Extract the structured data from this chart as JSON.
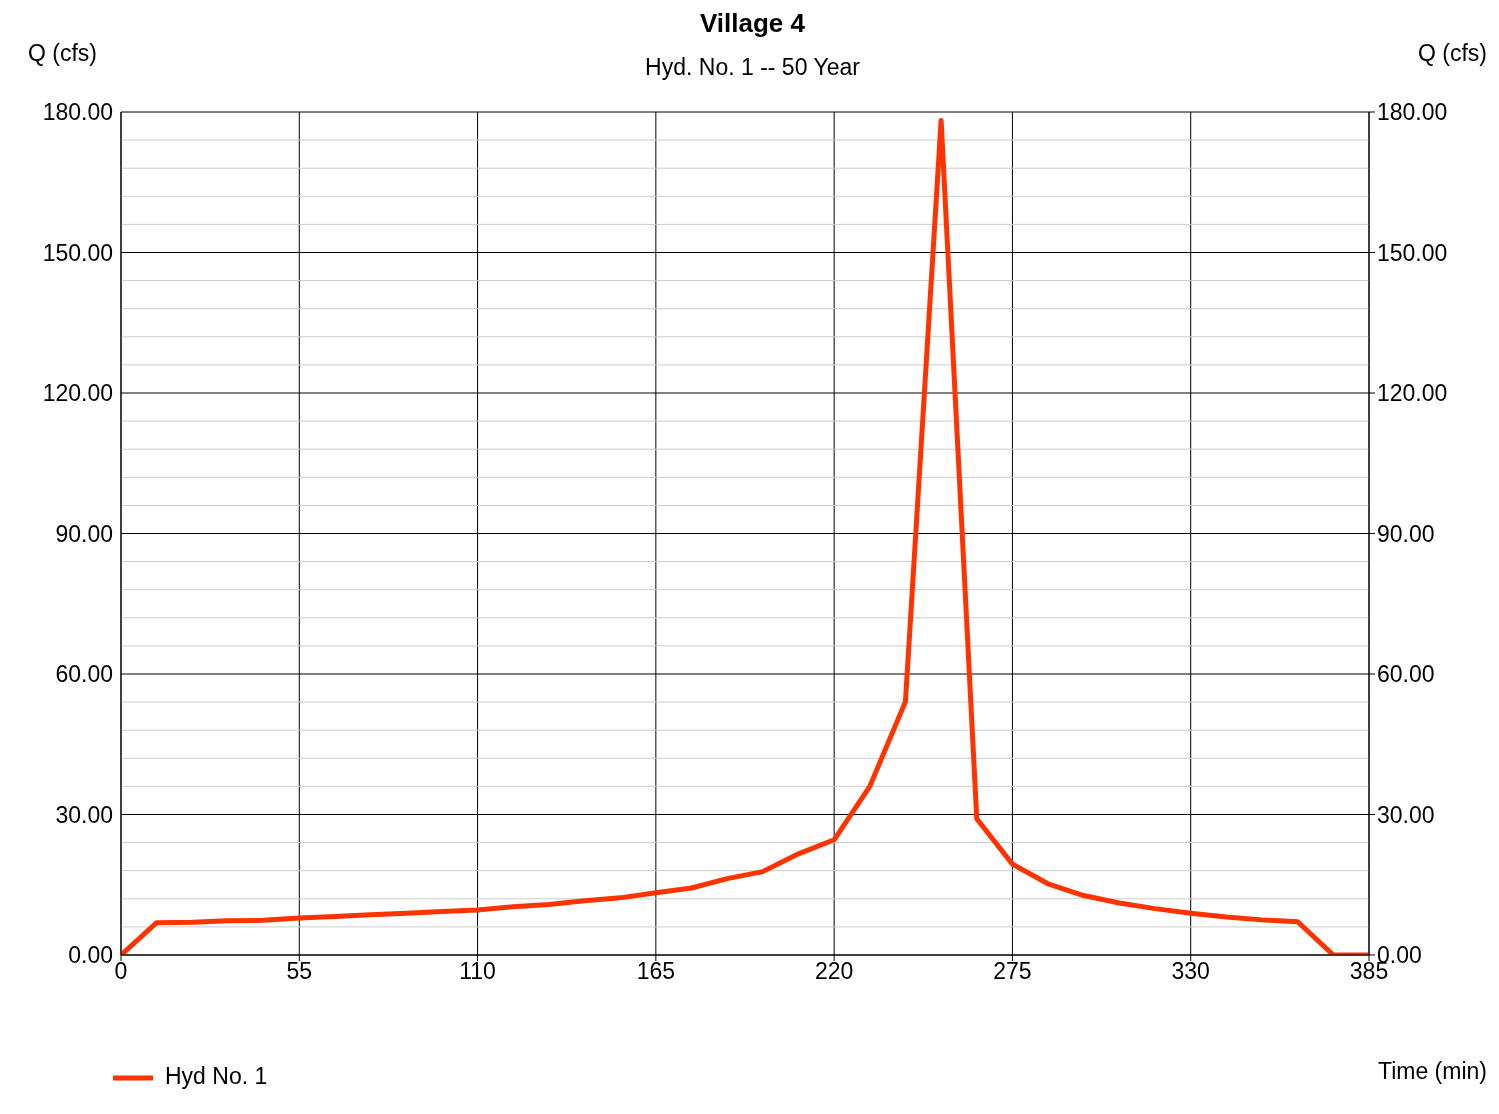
{
  "chart_data": {
    "type": "line",
    "title": "Village 4",
    "subtitle": "Hyd. No. 1 -- 50 Year",
    "xlabel": "Time (min)",
    "ylabel": "Q (cfs)",
    "y2label": "Q (cfs)",
    "x": [
      0,
      11,
      22,
      33,
      44,
      55,
      66,
      77,
      88,
      99,
      110,
      121,
      132,
      143,
      154,
      165,
      176,
      187,
      198,
      209,
      220,
      231,
      242,
      253,
      264,
      275,
      286,
      297,
      308,
      319,
      330,
      341,
      352,
      363,
      374,
      385
    ],
    "series": [
      {
        "name": "Hyd No. 1",
        "color": "#ff3300",
        "values": [
          0,
          6.9,
          7.0,
          7.3,
          7.4,
          7.9,
          8.2,
          8.6,
          8.9,
          9.3,
          9.6,
          10.3,
          10.8,
          11.6,
          12.2,
          13.3,
          14.3,
          16.3,
          17.8,
          21.6,
          24.6,
          36.0,
          54.1,
          178.2,
          29.1,
          19.4,
          15.2,
          12.7,
          11.1,
          9.9,
          8.9,
          8.1,
          7.5,
          7.1,
          0,
          0
        ]
      }
    ],
    "xlim": [
      0,
      385
    ],
    "xticks": [
      0,
      55,
      110,
      165,
      220,
      275,
      330,
      385
    ],
    "ylim": [
      0,
      180
    ],
    "yticks": [
      {
        "value": 0,
        "label": "0.00"
      },
      {
        "value": 6,
        "label": null
      },
      {
        "value": 12,
        "label": null
      },
      {
        "value": 18,
        "label": null
      },
      {
        "value": 24,
        "label": null
      },
      {
        "value": 30,
        "label": "30.00"
      },
      {
        "value": 36,
        "label": null
      },
      {
        "value": 42,
        "label": null
      },
      {
        "value": 48,
        "label": null
      },
      {
        "value": 54,
        "label": null
      },
      {
        "value": 60,
        "label": "60.00"
      },
      {
        "value": 66,
        "label": null
      },
      {
        "value": 72,
        "label": null
      },
      {
        "value": 78,
        "label": null
      },
      {
        "value": 84,
        "label": null
      },
      {
        "value": 90,
        "label": "90.00"
      },
      {
        "value": 96,
        "label": null
      },
      {
        "value": 102,
        "label": null
      },
      {
        "value": 108,
        "label": null
      },
      {
        "value": 114,
        "label": null
      },
      {
        "value": 120,
        "label": "120.00"
      },
      {
        "value": 126,
        "label": null
      },
      {
        "value": 132,
        "label": null
      },
      {
        "value": 138,
        "label": null
      },
      {
        "value": 144,
        "label": null
      },
      {
        "value": 150,
        "label": "150.00"
      },
      {
        "value": 156,
        "label": null
      },
      {
        "value": 162,
        "label": null
      },
      {
        "value": 168,
        "label": null
      },
      {
        "value": 174,
        "label": null
      },
      {
        "value": 180,
        "label": "180.00"
      }
    ],
    "y2lim": [
      0,
      180
    ],
    "y2ticks": [
      {
        "value": 0,
        "label": "0.00"
      },
      {
        "value": 30,
        "label": "30.00"
      },
      {
        "value": 60,
        "label": "60.00"
      },
      {
        "value": 90,
        "label": "90.00"
      },
      {
        "value": 120,
        "label": "120.00"
      },
      {
        "value": 150,
        "label": "150.00"
      },
      {
        "value": 180,
        "label": "180.00"
      }
    ],
    "grid": true,
    "legend": "bottom left",
    "marker": "none",
    "line_style": "solid"
  }
}
